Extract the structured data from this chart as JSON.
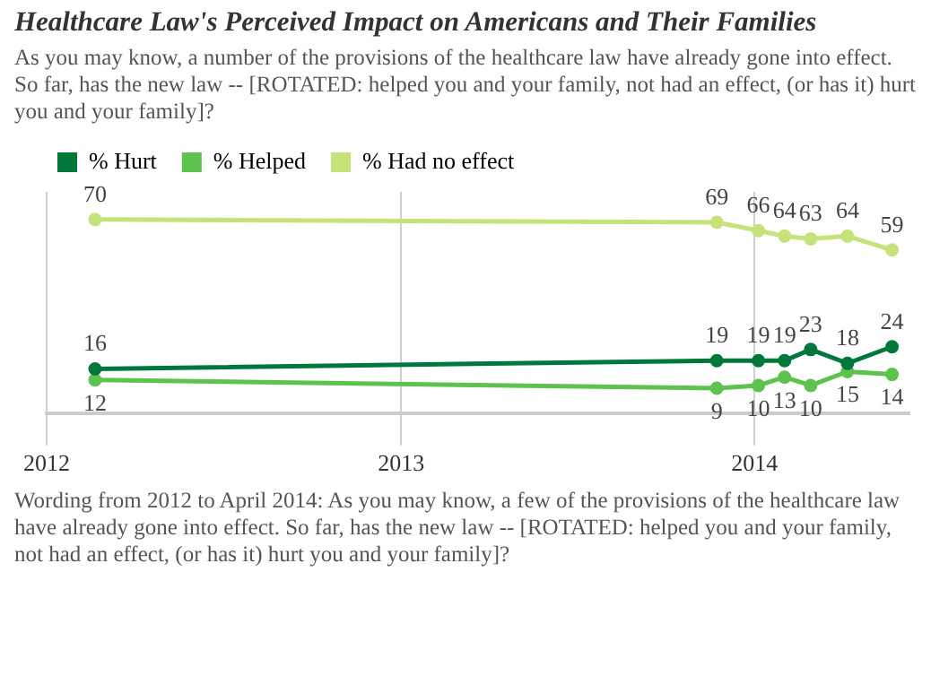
{
  "chart_data": {
    "type": "line",
    "title": "Healthcare Law's Perceived Impact on Americans and Their Families",
    "subtitle": "As you may know, a number of the provisions of the healthcare law have already gone into effect. So far, has the new law -- [ROTATED: helped you and your family, not had an effect, (or has it) hurt you and your family]?",
    "x": [
      "2012-02-20",
      "2013-11-23",
      "2014-01-05",
      "2014-02-01",
      "2014-02-28",
      "2014-04-07",
      "2014-05-23"
    ],
    "series": [
      {
        "name": "% Hurt",
        "color": "#00783c",
        "values": [
          16,
          19,
          19,
          19,
          23,
          18,
          24
        ]
      },
      {
        "name": "% Helped",
        "color": "#5ec24f",
        "values": [
          12,
          9,
          10,
          13,
          10,
          15,
          14
        ]
      },
      {
        "name": "% Had no effect",
        "color": "#c6e27a",
        "values": [
          70,
          69,
          66,
          64,
          63,
          64,
          59
        ]
      }
    ],
    "xlim": [
      "2012-01-01",
      "2014-06-10"
    ],
    "xticks": [
      "2012",
      "2013",
      "2014"
    ],
    "ylim": [
      0,
      80
    ],
    "tick_labels": "x",
    "grid": "x",
    "legend": "top left",
    "marker": "circle",
    "data_labels": true,
    "annotations": [
      "Wording from 2012 to April 2014: As you may know, a few of the provisions of the healthcare law have already gone into effect. So far, has the new law -- [ROTATED: helped you and your family, not had an effect, (or has it) hurt you and your family]?"
    ]
  }
}
